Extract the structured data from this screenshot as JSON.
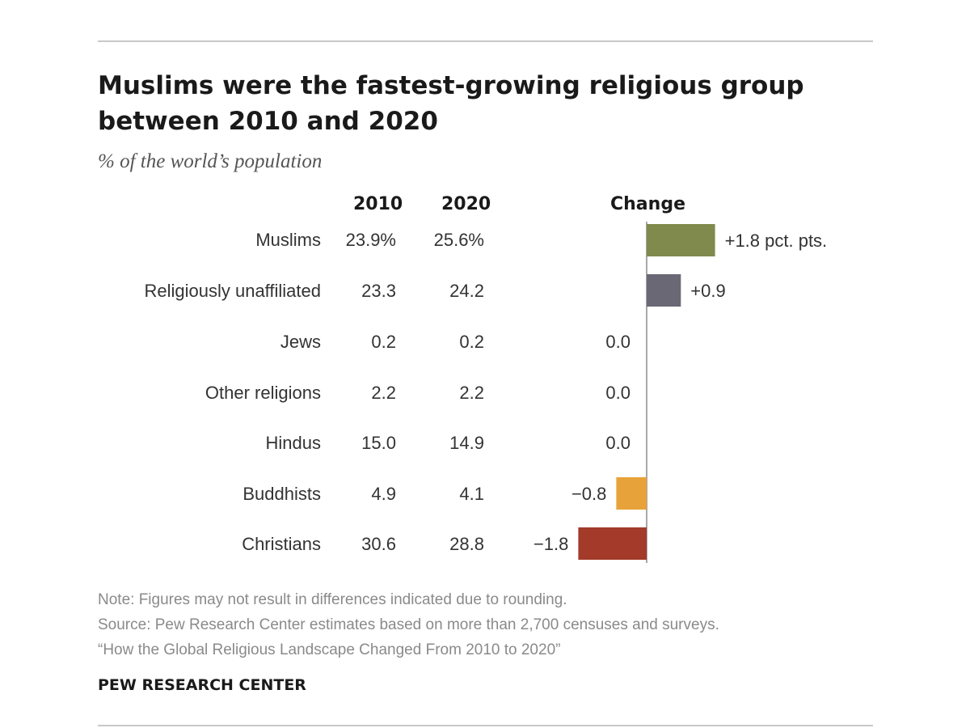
{
  "header": {
    "title": "Muslims were the fastest-growing religious group between 2010 and 2020",
    "subtitle": "% of the world’s population"
  },
  "columns": {
    "y2010": "2010",
    "y2020": "2020",
    "change": "Change"
  },
  "rows": [
    {
      "label": "Muslims",
      "v2010": "23.9%",
      "v2020": "25.6%",
      "change_label": "+1.8 pct. pts."
    },
    {
      "label": "Religiously unaffiliated",
      "v2010": "23.3",
      "v2020": "24.2",
      "change_label": "+0.9"
    },
    {
      "label": "Jews",
      "v2010": "0.2",
      "v2020": "0.2",
      "change_label": "0.0"
    },
    {
      "label": "Other religions",
      "v2010": "2.2",
      "v2020": "2.2",
      "change_label": "0.0"
    },
    {
      "label": "Hindus",
      "v2010": "15.0",
      "v2020": "14.9",
      "change_label": "0.0"
    },
    {
      "label": "Buddhists",
      "v2010": "4.9",
      "v2020": "4.1",
      "change_label": "−0.8"
    },
    {
      "label": "Christians",
      "v2010": "30.6",
      "v2020": "28.8",
      "change_label": "−1.8"
    }
  ],
  "chart_data": {
    "type": "bar",
    "orientation": "horizontal",
    "categories": [
      "Muslims",
      "Religiously unaffiliated",
      "Jews",
      "Other religions",
      "Hindus",
      "Buddhists",
      "Christians"
    ],
    "series": [
      {
        "values": [
          1.8,
          0.9,
          0.0,
          0.0,
          0.0,
          -0.8,
          -1.8
        ]
      }
    ],
    "colors": [
      "#7f8a4c",
      "#6b6875",
      "#7f8a4c",
      "#7f8a4c",
      "#7f8a4c",
      "#e8a23a",
      "#a33a2a"
    ],
    "xlim": [
      -1.8,
      1.8
    ],
    "grid": false,
    "zero_line": true
  },
  "footer": {
    "note": "Note: Figures may not result in differences indicated due to rounding.",
    "source": "Source: Pew Research Center estimates based on more than 2,700 censuses and surveys.",
    "report": "“How the Global Religious Landscape Changed From 2010 to 2020”",
    "brand": "PEW RESEARCH CENTER"
  }
}
